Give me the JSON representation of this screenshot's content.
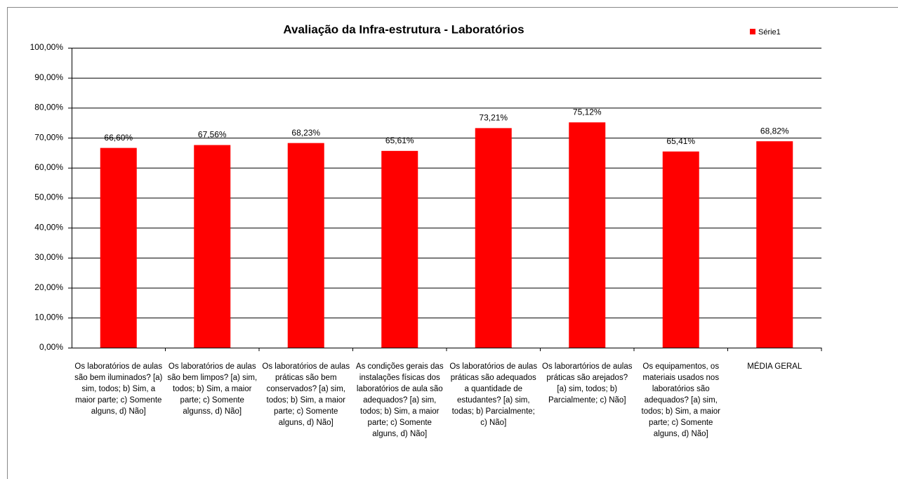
{
  "chart_data": {
    "type": "bar",
    "title": "Avaliação da Infra-estrutura - Laboratórios",
    "categories": [
      "Os laboratórios de aulas são bem iluminados? [a) sim, todos; b) Sim, a maior parte; c) Somente alguns, d) Não]",
      "Os laboratórios de aulas são bem limpos? [a) sim, todos; b) Sim, a maior parte; c) Somente algunss, d) Não]",
      "Os laboratórios de aulas práticas são bem conservados? [a) sim, todos; b) Sim, a maior parte; c) Somente alguns, d) Não]",
      "As condições gerais das instalações físicas dos laboratórios de aula são adequados? [a) sim, todos; b) Sim, a maior parte; c) Somente alguns, d) Não]",
      "Os laboratórios de aulas práticas são adequados a quantidade de estudantes? [a) sim, todas; b) Parcialmente; c) Não]",
      "Os laborartórios de aulas práticas são arejados? [a) sim, todos; b) Parcialmente; c) Não]",
      "Os equipamentos, os materiais usados nos laboratórios são adequados? [a) sim, todos; b) Sim, a maior parte; c) Somente alguns, d) Não]",
      "MÉDIA GERAL"
    ],
    "series": [
      {
        "name": "Série1",
        "color": "#ff0000",
        "values": [
          66.6,
          67.56,
          68.23,
          65.61,
          73.21,
          75.12,
          65.41,
          68.82
        ],
        "value_labels": [
          "66,60%",
          "67,56%",
          "68,23%",
          "65,61%",
          "73,21%",
          "75,12%",
          "65,41%",
          "68,82%"
        ]
      }
    ],
    "ylim": [
      0,
      100
    ],
    "yticks": [
      {
        "value": 0,
        "label": "0,00%"
      },
      {
        "value": 10,
        "label": "10,00%"
      },
      {
        "value": 20,
        "label": "20,00%"
      },
      {
        "value": 30,
        "label": "30,00%"
      },
      {
        "value": 40,
        "label": "40,00%"
      },
      {
        "value": 50,
        "label": "50,00%"
      },
      {
        "value": 60,
        "label": "60,00%"
      },
      {
        "value": 70,
        "label": "70,00%"
      },
      {
        "value": 80,
        "label": "80,00%"
      },
      {
        "value": 90,
        "label": "90,00%"
      },
      {
        "value": 100,
        "label": "100,00%"
      }
    ],
    "grid": true,
    "legend": "top-right"
  }
}
